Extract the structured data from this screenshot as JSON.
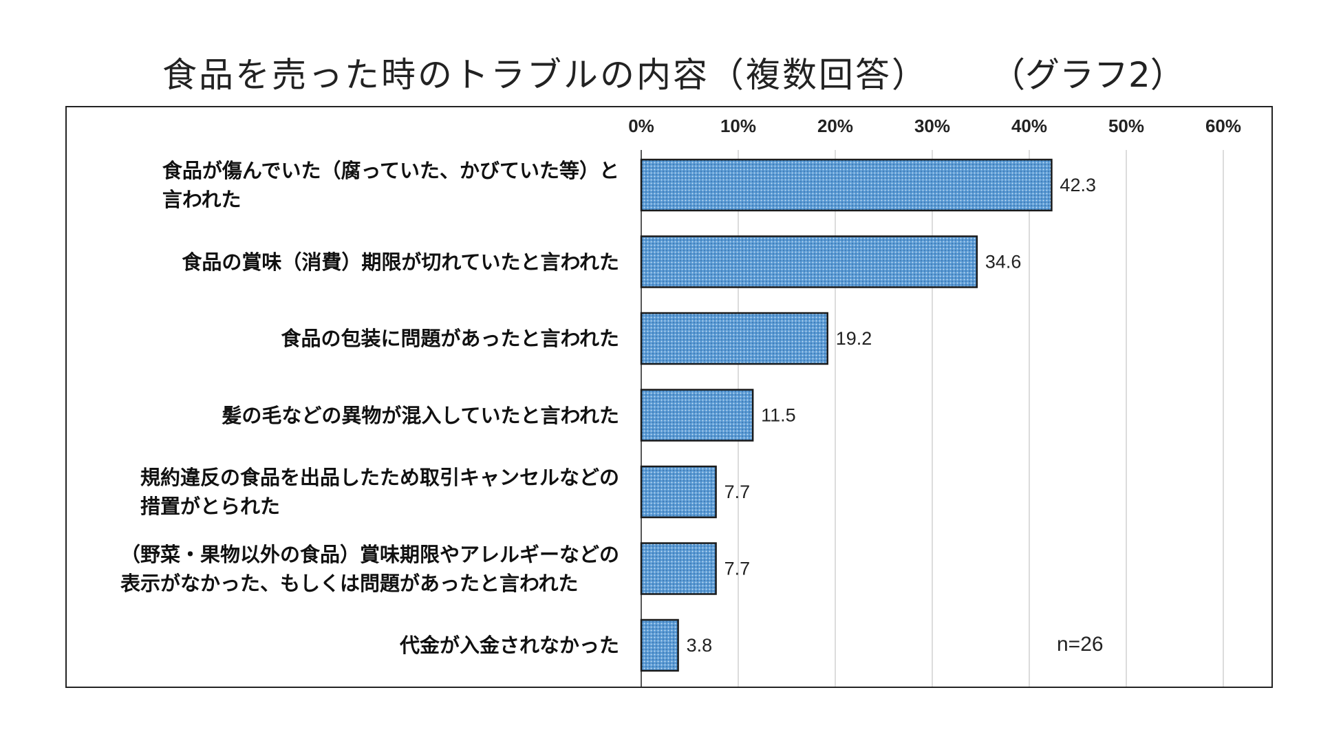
{
  "chart_data": {
    "type": "bar",
    "orientation": "horizontal",
    "title": "食品を売った時のトラブルの内容（複数回答）",
    "graph_label": "（グラフ2）",
    "categories": [
      "食品が傷んでいた（腐っていた、かびていた等）と\n言われた",
      "食品の賞味（消費）期限が切れていたと言われた",
      "食品の包装に問題があったと言われた",
      "髪の毛などの異物が混入していたと言われた",
      "規約違反の食品を出品したため取引キャンセルなどの\n措置がとられた",
      "（野菜・果物以外の食品）賞味期限やアレルギーなどの\n表示がなかった、もしくは問題があったと言われた",
      "代金が入金されなかった"
    ],
    "values": [
      42.3,
      34.6,
      19.2,
      11.5,
      7.7,
      7.7,
      3.8
    ],
    "value_labels": [
      "42.3",
      "34.6",
      "19.2",
      "11.5",
      "7.7",
      "7.7",
      "3.8"
    ],
    "xlim": [
      0,
      60
    ],
    "ticks": [
      "0%",
      "10%",
      "20%",
      "30%",
      "40%",
      "50%",
      "60%"
    ],
    "tick_values": [
      0,
      10,
      20,
      30,
      40,
      50,
      60
    ],
    "grid": true,
    "axis_position": "top",
    "sample_note": "n=26",
    "bar_color": "#5b9bd5",
    "bar_border_color": "#1a1a1a"
  }
}
